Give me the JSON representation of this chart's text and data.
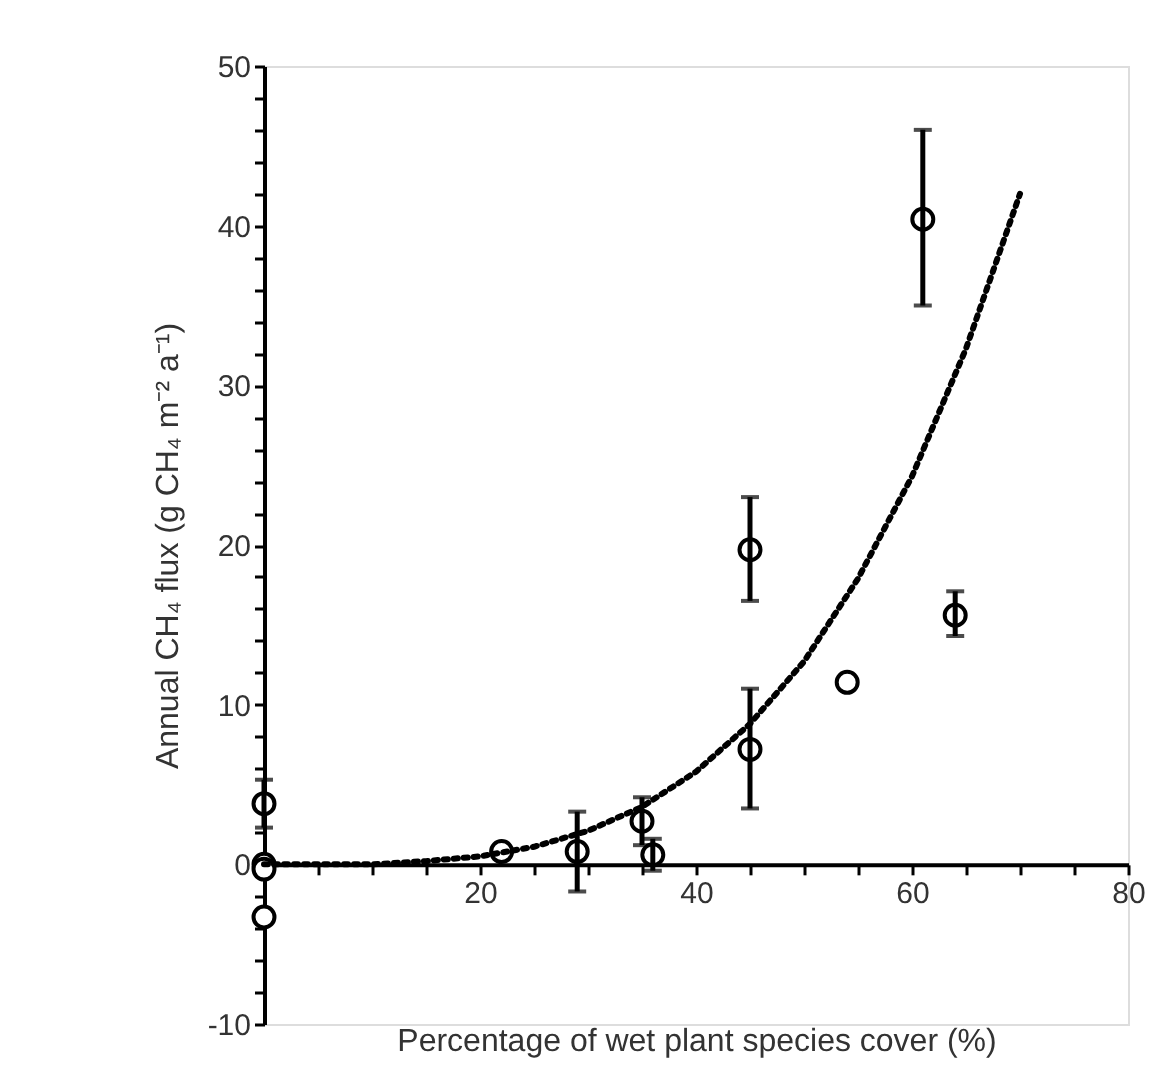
{
  "chart_data": {
    "type": "scatter",
    "xlabel": "Percentage of wet plant species cover (%)",
    "ylabel": "Annual CH₄ flux (g CH₄ m⁻² a⁻¹)",
    "xlim": [
      0,
      80
    ],
    "ylim": [
      -10,
      50
    ],
    "xticks": [
      {
        "value": 0,
        "label": null
      },
      {
        "value": 5,
        "label": null
      },
      {
        "value": 10,
        "label": null
      },
      {
        "value": 15,
        "label": null
      },
      20,
      {
        "value": 25,
        "label": null
      },
      {
        "value": 30,
        "label": null
      },
      {
        "value": 35,
        "label": null
      },
      40,
      {
        "value": 45,
        "label": null
      },
      {
        "value": 50,
        "label": null
      },
      {
        "value": 55,
        "label": null
      },
      60,
      {
        "value": 65,
        "label": null
      },
      {
        "value": 70,
        "label": null
      },
      {
        "value": 75,
        "label": null
      },
      80
    ],
    "yticks": [
      -10,
      {
        "value": -8,
        "label": null
      },
      {
        "value": -6,
        "label": null
      },
      {
        "value": -4,
        "label": null
      },
      {
        "value": -2,
        "label": null
      },
      0,
      {
        "value": 2,
        "label": null
      },
      {
        "value": 4,
        "label": null
      },
      {
        "value": 6,
        "label": null
      },
      {
        "value": 8,
        "label": null
      },
      10,
      {
        "value": 12,
        "label": null
      },
      {
        "value": 14,
        "label": null
      },
      {
        "value": 16,
        "label": null
      },
      {
        "value": 18,
        "label": null
      },
      20,
      {
        "value": 22,
        "label": null
      },
      {
        "value": 24,
        "label": null
      },
      {
        "value": 26,
        "label": null
      },
      {
        "value": 28,
        "label": null
      },
      30,
      {
        "value": 32,
        "label": null
      },
      {
        "value": 34,
        "label": null
      },
      {
        "value": 36,
        "label": null
      },
      {
        "value": 38,
        "label": null
      },
      40,
      {
        "value": 42,
        "label": null
      },
      {
        "value": 44,
        "label": null
      },
      {
        "value": 46,
        "label": null
      },
      {
        "value": 48,
        "label": null
      },
      50
    ],
    "series": [
      {
        "color": "#000000",
        "marker": "circle",
        "x": [
          0,
          0,
          0,
          0,
          22,
          29,
          35,
          36,
          45,
          45,
          54,
          61,
          64
        ],
        "values": [
          3.8,
          0,
          -0.3,
          -3.3,
          0.8,
          0.8,
          2.7,
          0.6,
          7.2,
          19.7,
          11.4,
          40.4,
          15.6
        ],
        "errors": [
          1.5,
          null,
          null,
          null,
          null,
          2.5,
          1.5,
          1,
          [
            3.5,
            11
          ],
          [
            16.5,
            23
          ],
          null,
          [
            35,
            46
          ],
          [
            14.3,
            17.1
          ]
        ]
      },
      {
        "type": "line",
        "color": "#000000",
        "line_style": "dotted",
        "marker": "none",
        "x": [
          0,
          10,
          15,
          20,
          25,
          30,
          35,
          40,
          45,
          50,
          55,
          60,
          65,
          70
        ],
        "values": [
          0,
          0,
          0.2,
          0.5,
          1.1,
          2.1,
          3.6,
          5.8,
          8.8,
          12.7,
          17.9,
          24.3,
          32.3,
          42
        ]
      }
    ]
  }
}
